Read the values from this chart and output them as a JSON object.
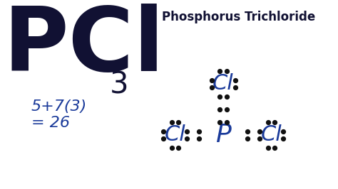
{
  "bg_color": "#ffffff",
  "pcl_text": "PCl",
  "subscript_3": "3",
  "calc_line1": "5+7(3)",
  "calc_line2": "= 26",
  "compound_name": "Phosphorus Trichloride",
  "dark_navy": "#111133",
  "blue_ink": "#1a3a9a",
  "dot_color": "#111111",
  "fig_width": 4.74,
  "fig_height": 2.66,
  "dpi": 100,
  "pcl_fontsize": 90,
  "sub3_fontsize": 30,
  "calc_fontsize": 16,
  "name_fontsize": 12,
  "cl_fontsize": 22,
  "p_fontsize": 26
}
